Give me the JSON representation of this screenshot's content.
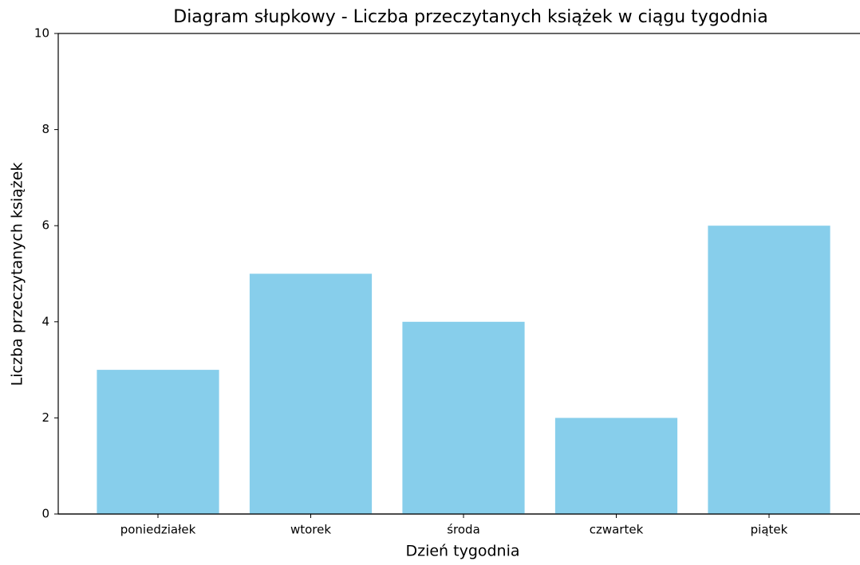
{
  "chart_data": {
    "type": "bar",
    "title": "Diagram słupkowy - Liczba przeczytanych książek w ciągu tygodnia",
    "x_label": "Dzień tygodnia",
    "y_label": "Liczba przeczytanych książek",
    "categories": [
      "poniedziałek",
      "wtorek",
      "środa",
      "czwartek",
      "piątek"
    ],
    "values": [
      3,
      5,
      4,
      2,
      6
    ],
    "color": "#87ceeb",
    "ylim": [
      0,
      10
    ],
    "yticks": [
      0,
      2,
      4,
      6,
      8,
      10
    ],
    "grid": false
  }
}
